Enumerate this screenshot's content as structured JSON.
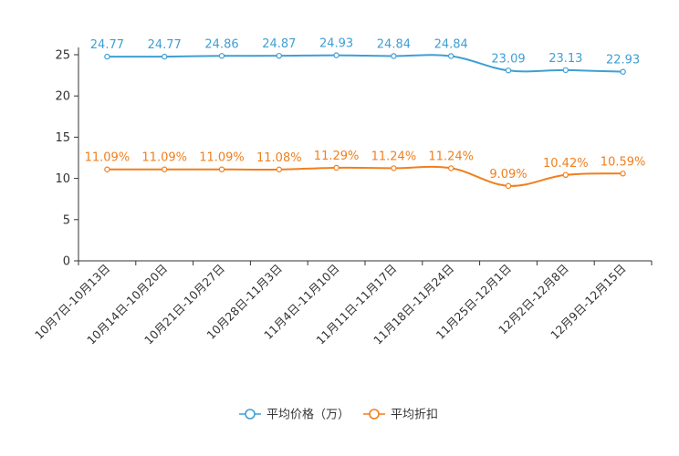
{
  "chart_data": {
    "type": "line",
    "title": "",
    "xlabel": "",
    "ylabel": "",
    "ylim": [
      0,
      25
    ],
    "yticks": [
      0,
      5,
      10,
      15,
      20,
      25
    ],
    "grid": false,
    "legend_position": "bottom-center",
    "categories": [
      "10月7日-10月13日",
      "10月14日-10月20日",
      "10月21日-10月27日",
      "10月28日-11月3日",
      "11月4日-11月10日",
      "11月11日-11月17日",
      "11月18日-11月24日",
      "11月25日-12月1日",
      "12月2日-12月8日",
      "12月9日-12月15日"
    ],
    "series": [
      {
        "name": "平均价格（万）",
        "color": "#3f9fd3",
        "values": [
          24.77,
          24.77,
          24.86,
          24.87,
          24.93,
          24.84,
          24.84,
          23.09,
          23.13,
          22.93
        ],
        "labels": [
          "24.77",
          "24.77",
          "24.86",
          "24.87",
          "24.93",
          "24.84",
          "24.84",
          "23.09",
          "23.13",
          "22.93"
        ]
      },
      {
        "name": "平均折扣",
        "color": "#f07f1c",
        "values": [
          11.09,
          11.09,
          11.09,
          11.08,
          11.29,
          11.24,
          11.24,
          9.09,
          10.42,
          10.59
        ],
        "labels": [
          "11.09%",
          "11.09%",
          "11.09%",
          "11.08%",
          "11.29%",
          "11.24%",
          "11.24%",
          "9.09%",
          "10.42%",
          "10.59%"
        ]
      }
    ]
  }
}
